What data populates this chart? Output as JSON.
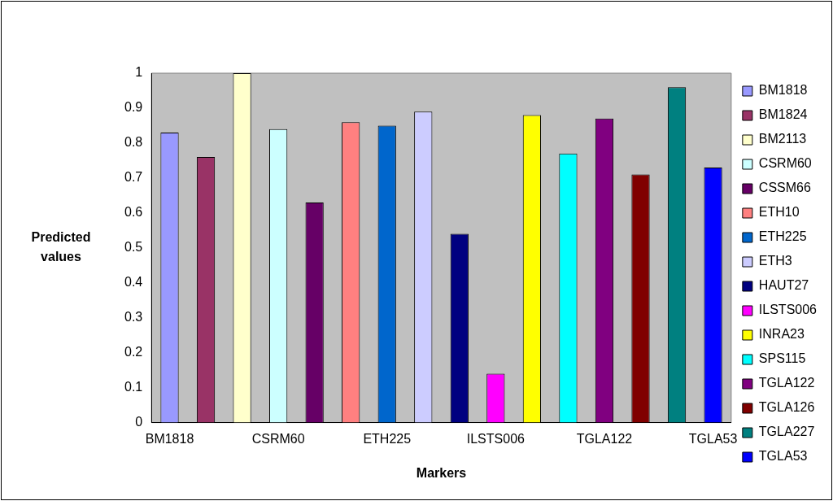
{
  "chart_data": {
    "type": "bar",
    "xlabel": "Markers",
    "ylabel": "Predicted values",
    "categories": [
      "BM1818",
      null,
      null,
      "CSRM60",
      null,
      null,
      "ETH225",
      null,
      null,
      "ILSTS006",
      null,
      null,
      "TGLA122",
      null,
      null,
      "TGLA53"
    ],
    "series": [
      {
        "name": "BM1818",
        "color": "#9999ff",
        "values": [
          0.83,
          null,
          null,
          null,
          null,
          null,
          null,
          null,
          null,
          null,
          null,
          null,
          null,
          null,
          null,
          null
        ]
      },
      {
        "name": "BM1824",
        "color": "#993366",
        "values": [
          null,
          0.76,
          null,
          null,
          null,
          null,
          null,
          null,
          null,
          null,
          null,
          null,
          null,
          null,
          null,
          null
        ]
      },
      {
        "name": "BM2113",
        "color": "#ffffcc",
        "values": [
          null,
          null,
          1.0,
          null,
          null,
          null,
          null,
          null,
          null,
          null,
          null,
          null,
          null,
          null,
          null,
          null
        ]
      },
      {
        "name": "CSRM60",
        "color": "#ccffff",
        "values": [
          null,
          null,
          null,
          0.84,
          null,
          null,
          null,
          null,
          null,
          null,
          null,
          null,
          null,
          null,
          null,
          null
        ]
      },
      {
        "name": "CSSM66",
        "color": "#660066",
        "values": [
          null,
          null,
          null,
          null,
          0.63,
          null,
          null,
          null,
          null,
          null,
          null,
          null,
          null,
          null,
          null,
          null
        ]
      },
      {
        "name": "ETH10",
        "color": "#ff8080",
        "values": [
          null,
          null,
          null,
          null,
          null,
          0.86,
          null,
          null,
          null,
          null,
          null,
          null,
          null,
          null,
          null,
          null
        ]
      },
      {
        "name": "ETH225",
        "color": "#0066cc",
        "values": [
          null,
          null,
          null,
          null,
          null,
          null,
          0.85,
          null,
          null,
          null,
          null,
          null,
          null,
          null,
          null,
          null
        ]
      },
      {
        "name": "ETH3",
        "color": "#ccccff",
        "values": [
          null,
          null,
          null,
          null,
          null,
          null,
          null,
          0.89,
          null,
          null,
          null,
          null,
          null,
          null,
          null,
          null
        ]
      },
      {
        "name": "HAUT27",
        "color": "#000080",
        "values": [
          null,
          null,
          null,
          null,
          null,
          null,
          null,
          null,
          0.54,
          null,
          null,
          null,
          null,
          null,
          null,
          null
        ]
      },
      {
        "name": "ILSTS006",
        "color": "#ff00ff",
        "values": [
          null,
          null,
          null,
          null,
          null,
          null,
          null,
          null,
          null,
          0.14,
          null,
          null,
          null,
          null,
          null,
          null
        ]
      },
      {
        "name": "INRA23",
        "color": "#ffff00",
        "values": [
          null,
          null,
          null,
          null,
          null,
          null,
          null,
          null,
          null,
          null,
          0.88,
          null,
          null,
          null,
          null,
          null
        ]
      },
      {
        "name": "SPS115",
        "color": "#00ffff",
        "values": [
          null,
          null,
          null,
          null,
          null,
          null,
          null,
          null,
          null,
          null,
          null,
          0.77,
          null,
          null,
          null,
          null
        ]
      },
      {
        "name": "TGLA122",
        "color": "#800080",
        "values": [
          null,
          null,
          null,
          null,
          null,
          null,
          null,
          null,
          null,
          null,
          null,
          null,
          0.87,
          null,
          null,
          null
        ]
      },
      {
        "name": "TGLA126",
        "color": "#800000",
        "values": [
          null,
          null,
          null,
          null,
          null,
          null,
          null,
          null,
          null,
          null,
          null,
          null,
          null,
          0.71,
          null,
          null
        ]
      },
      {
        "name": "TGLA227",
        "color": "#008080",
        "values": [
          null,
          null,
          null,
          null,
          null,
          null,
          null,
          null,
          null,
          null,
          null,
          null,
          null,
          null,
          0.96,
          null
        ]
      },
      {
        "name": "TGLA53",
        "color": "#0000ff",
        "values": [
          null,
          null,
          null,
          null,
          null,
          null,
          null,
          null,
          null,
          null,
          null,
          null,
          null,
          null,
          null,
          0.73
        ]
      }
    ],
    "ylim": [
      0,
      1
    ],
    "yticks": [
      0,
      0.1,
      0.2,
      0.3,
      0.4,
      0.5,
      0.6,
      0.7,
      0.8,
      0.9,
      1
    ],
    "grid": false,
    "legend": "right"
  }
}
